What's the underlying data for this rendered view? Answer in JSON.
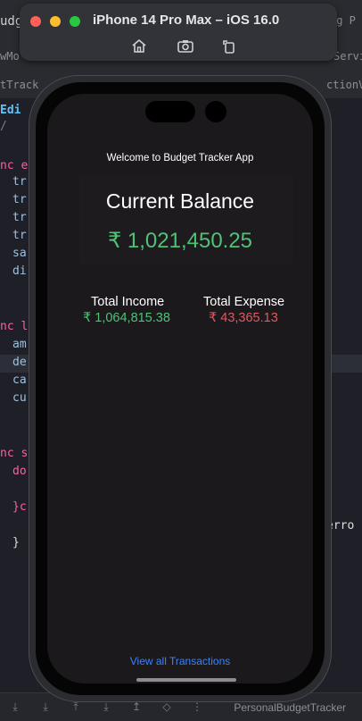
{
  "simulator": {
    "title": "iPhone 14 Pro Max – iOS 16.0",
    "colors": {
      "close": "#ff5f57",
      "minimize": "#febc2e",
      "zoom": "#28c840"
    },
    "tools": [
      "home-icon",
      "screenshot-icon",
      "rotate-icon"
    ]
  },
  "background_editor": {
    "top_left_fragment": "udg",
    "top_right_fragment": "ng P",
    "tab_left_fragment": "wMo",
    "tab_right_fragment": "Servic",
    "row2_left_fragment": "tTrack",
    "row2_right_fragment": "ctionVie",
    "edit_fragment": "Edi",
    "code_lines": [
      {
        "text": "nc e",
        "color": "#fc5fa3"
      },
      {
        "text": "tr",
        "color": "#9cc2e0"
      },
      {
        "text": "tr",
        "color": "#9cc2e0"
      },
      {
        "text": "tr",
        "color": "#9cc2e0"
      },
      {
        "text": "tr",
        "color": "#9cc2e0"
      },
      {
        "text": "sa",
        "color": "#9cc2e0"
      },
      {
        "text": "di",
        "color": "#9cc2e0"
      },
      {
        "text": "nc l",
        "color": "#fc5fa3"
      },
      {
        "text": "am",
        "color": "#9cc2e0"
      },
      {
        "text": "de",
        "color": "#9cc2e0"
      },
      {
        "text": "ca",
        "color": "#9cc2e0"
      },
      {
        "text": "cu",
        "color": "#9cc2e0"
      },
      {
        "text": "nc s",
        "color": "#fc5fa3"
      },
      {
        "text": "do",
        "color": "#fc5fa3"
      },
      {
        "text": "}c",
        "color": "#fc5fa3"
      },
      {
        "text": "}",
        "color": "#dfdfe0"
      }
    ],
    "error_fragment": "erro",
    "bottom_label": "PersonalBudgetTracker"
  },
  "app": {
    "welcome_text": "Welcome to Budget Tracker App",
    "balance_title": "Current Balance",
    "balance_value": "₹ 1,021,450.25",
    "income_label": "Total Income",
    "income_value": "₹ 1,064,815.38",
    "expense_label": "Total Expense",
    "expense_value": "₹ 43,365.13",
    "view_all_link": "View all Transactions",
    "colors": {
      "positive": "#4fc277",
      "negative": "#e0575f",
      "link": "#3b82f6",
      "background": "#1c191c"
    }
  }
}
